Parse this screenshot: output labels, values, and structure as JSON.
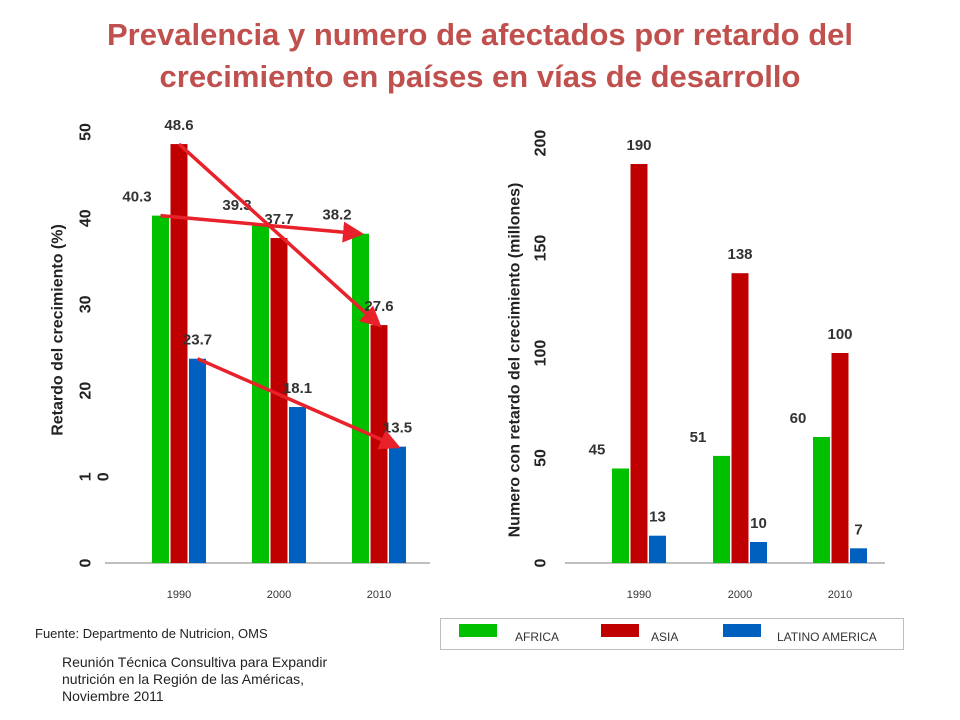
{
  "title": {
    "line1": "Prevalencia y numero de afectados por retardo del",
    "line2": "crecimiento en países en vías de desarrollo"
  },
  "colors": {
    "africa": "#00c000",
    "asia": "#c00000",
    "latam": "#0060c0",
    "trend": "#e8212a",
    "title": "#c0504d"
  },
  "chart_data": [
    {
      "type": "bar",
      "categories": [
        "1990",
        "2000",
        "2010"
      ],
      "ylabel": "Retardo del crecimiento (%)",
      "ylim": [
        0,
        50
      ],
      "yticks": [
        "0",
        "1\n0",
        "20",
        "30",
        "40",
        "50"
      ],
      "series": [
        {
          "name": "AFRICA",
          "values": [
            40.3,
            39.3,
            38.2
          ],
          "labels": [
            "40.3",
            "39.3",
            "38.2"
          ]
        },
        {
          "name": "ASIA",
          "values": [
            48.6,
            37.7,
            27.6
          ],
          "labels": [
            "48.6",
            "37.7",
            "27.6"
          ]
        },
        {
          "name": "LATINO AMERICA",
          "values": [
            23.7,
            18.1,
            13.5
          ],
          "labels": [
            "23.7",
            "18.1",
            "13.5"
          ]
        }
      ],
      "trend_arrows": [
        {
          "series": "AFRICA",
          "from": 40.3,
          "to": 38.2
        },
        {
          "series": "ASIA",
          "from": 48.6,
          "to": 27.6
        },
        {
          "series": "LATINO AMERICA",
          "from": 23.7,
          "to": 13.5
        }
      ]
    },
    {
      "type": "bar",
      "categories": [
        "1990",
        "2000",
        "2010"
      ],
      "ylabel": "Numero con retardo del crecimiento (millones)",
      "ylim": [
        0,
        200
      ],
      "yticks": [
        "0",
        "50",
        "100",
        "150",
        "200"
      ],
      "series": [
        {
          "name": "AFRICA",
          "values": [
            45,
            51,
            60
          ],
          "labels": [
            "45",
            "51",
            "60"
          ]
        },
        {
          "name": "ASIA",
          "values": [
            190,
            138,
            100
          ],
          "labels": [
            "190",
            "138",
            "100"
          ]
        },
        {
          "name": "LATINO AMERICA",
          "values": [
            13,
            10,
            7
          ],
          "labels": [
            "13",
            "10",
            "7"
          ]
        }
      ]
    }
  ],
  "legend": [
    {
      "label": "AFRICA",
      "color": "#00c000"
    },
    {
      "label": "ASIA",
      "color": "#c00000"
    },
    {
      "label": "LATINO AMERICA",
      "color": "#0060c0"
    }
  ],
  "source": "Fuente: Departmento de Nutricion, OMS",
  "footnote": {
    "line1": "Reunión Técnica Consultiva para Expandir",
    "line2": "nutrición en la Región de las Américas,",
    "line3": "Noviembre 2011"
  }
}
